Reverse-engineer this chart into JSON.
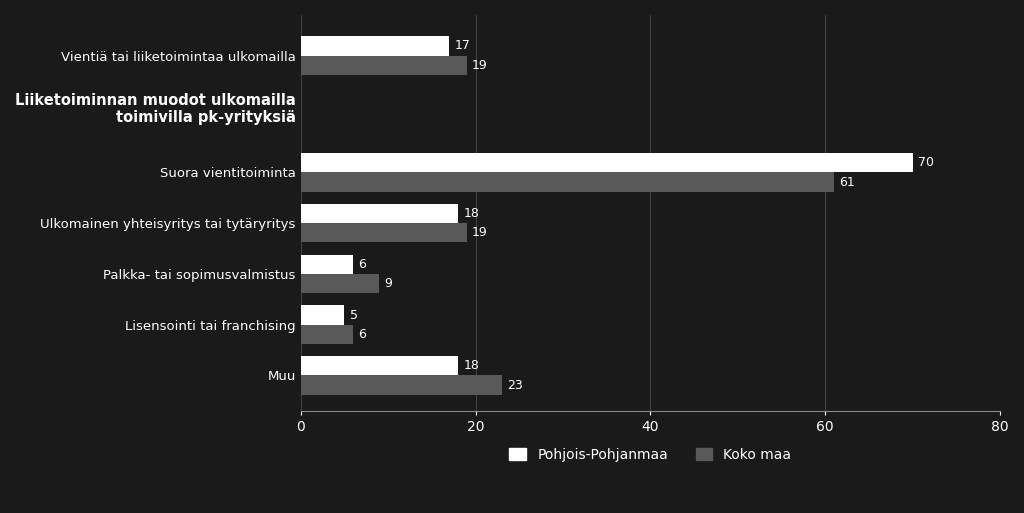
{
  "categories": [
    "Muu",
    "Lisensointi tai franchising",
    "Palkka- tai sopimusvalmistus",
    "Ulkomainen yhteisyritys tai tytäryritys",
    "Suora vientitoiminta",
    "Liiketoiminnan muodot ulkomailla\ntoimivilla pk-yrityksiä",
    "Vientiä tai liiketoimintaa ulkomailla"
  ],
  "pohjois_pohjanmaa": [
    18,
    5,
    6,
    18,
    70,
    null,
    17
  ],
  "koko_maa": [
    23,
    6,
    9,
    19,
    61,
    null,
    19
  ],
  "background_color": "#1a1a1a",
  "bar_color_pp": "#ffffff",
  "bar_color_km": "#595959",
  "text_color": "#ffffff",
  "axis_color": "#888888",
  "xlim": [
    0,
    80
  ],
  "xticks": [
    0,
    20,
    40,
    60,
    80
  ],
  "bar_height": 0.38,
  "legend_pp": "Pohjois-Pohjanmaa",
  "legend_km": "Koko maa",
  "bold_category_index": 5,
  "y_positions": [
    0,
    1,
    2,
    3,
    4,
    5.3,
    6.3
  ]
}
